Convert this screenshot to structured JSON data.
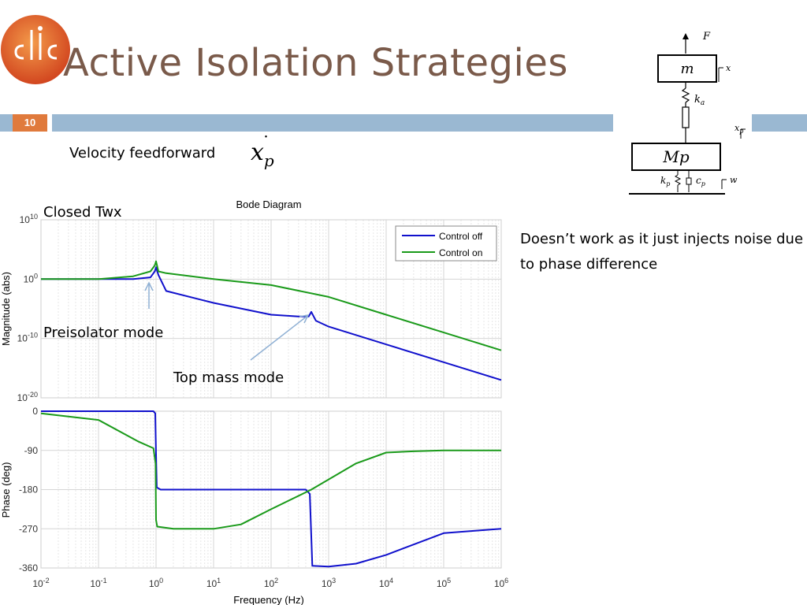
{
  "slide": {
    "title": "Active Isolation Strategies",
    "page_number": "10",
    "logo_text": "CLIC",
    "velocity_label": "Velocity feedforward",
    "formula": "x",
    "formula_sub": "p",
    "note": "Doesn’t work as it just injects noise due to phase difference"
  },
  "diagram": {
    "force": "F",
    "mass_top": "m",
    "x": "x",
    "spring_top": "k",
    "spring_top_sub": "a",
    "xp": "x",
    "xp_sub": "p",
    "mass_bottom": "Mp",
    "kp": "k",
    "kp_sub": "p",
    "cp": "c",
    "cp_sub": "p",
    "w": "w"
  },
  "annotations": {
    "closed": "Closed Twx",
    "preisolator": "Preisolator mode",
    "top_mass": "Top mass mode"
  },
  "chart_data": {
    "type": "line",
    "title": "Bode Diagram",
    "xlabel": "Frequency  (Hz)",
    "x_scale": "log",
    "xlim": [
      0.01,
      1000000
    ],
    "x_ticks": [
      "10-2",
      "10-1",
      "100",
      "101",
      "102",
      "103",
      "104",
      "105",
      "106"
    ],
    "legend_placement": "top-right",
    "colors": {
      "Control off": "#1010cc",
      "Control on": "#1a9a1a"
    },
    "panels": [
      {
        "name": "magnitude",
        "ylabel": "Magnitude (abs)",
        "y_scale": "log",
        "ylim": [
          1e-20,
          10000000000.0
        ],
        "y_ticks": [
          "1010",
          "100",
          "10-10",
          "10-20"
        ],
        "series": [
          {
            "name": "Control off",
            "x": [
              0.01,
              0.1,
              0.4,
              0.8,
              0.95,
              1.0,
              1.1,
              1.5,
              10,
              100,
              300,
              450,
              500,
              600,
              1000,
              10000,
              100000,
              1000000
            ],
            "y": [
              1,
              1,
              1,
              2,
              20,
              100,
              5,
              0.01,
              0.0001,
              1e-06,
              5e-07,
              5e-07,
              3e-06,
              1e-07,
              1e-08,
              1e-11,
              1e-14,
              1e-17
            ]
          },
          {
            "name": "Control on",
            "x": [
              0.01,
              0.1,
              0.4,
              0.8,
              0.95,
              1.0,
              1.1,
              1.5,
              10,
              100,
              1000,
              10000,
              100000,
              1000000
            ],
            "y": [
              1,
              1,
              3,
              20,
              200,
              1000,
              20,
              10,
              1,
              0.1,
              0.001,
              1e-06,
              1e-09,
              1e-12
            ]
          }
        ]
      },
      {
        "name": "phase",
        "ylabel": "Phase (deg)",
        "ylim": [
          -360,
          0
        ],
        "y_ticks": [
          "0",
          "-90",
          "-180",
          "-270",
          "-360"
        ],
        "series": [
          {
            "name": "Control off",
            "x": [
              0.01,
              0.1,
              0.9,
              0.97,
              1.0,
              1.03,
              1.2,
              10,
              100,
              400,
              470,
              520,
              1000,
              3000,
              10000,
              100000,
              1000000
            ],
            "y": [
              0,
              0,
              0,
              -5,
              -100,
              -175,
              -180,
              -180,
              -180,
              -180,
              -190,
              -355,
              -357,
              -350,
              -330,
              -280,
              -270
            ]
          },
          {
            "name": "Control on",
            "x": [
              0.01,
              0.1,
              0.5,
              0.9,
              0.98,
              1.0,
              1.05,
              2,
              10,
              30,
              100,
              500,
              3000,
              10000,
              30000,
              100000,
              1000000
            ],
            "y": [
              -5,
              -20,
              -70,
              -85,
              -120,
              -250,
              -265,
              -270,
              -270,
              -260,
              -225,
              -180,
              -120,
              -95,
              -92,
              -90,
              -90
            ]
          }
        ]
      }
    ]
  }
}
